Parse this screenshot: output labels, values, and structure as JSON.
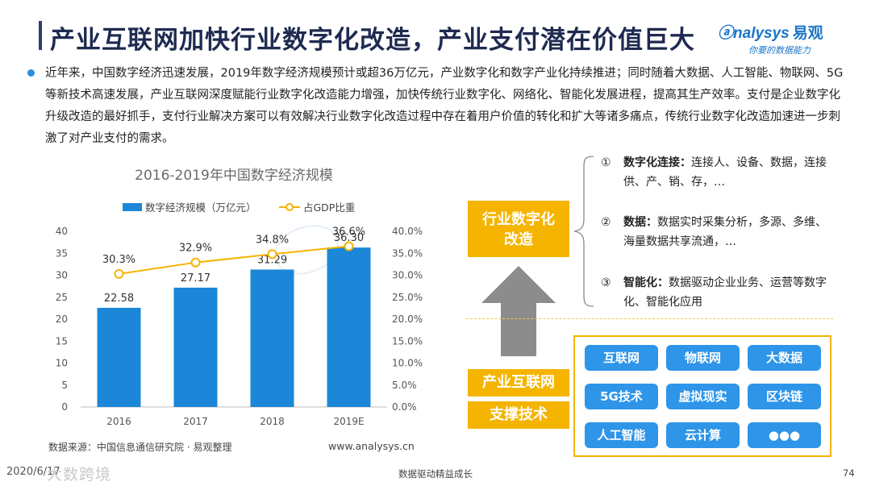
{
  "header": {
    "title": "产业互联网加快行业数字化改造，产业支付潜在价值巨大",
    "logo_text": "nalysys",
    "logo_cn": "易观",
    "logo_tagline": "你要的数据能力"
  },
  "intro": {
    "text": "近年来，中国数字经济迅速发展，2019年数字经济规模预计或超36万亿元，产业数字化和数字产业化持续推进；同时随着大数据、人工智能、物联网、5G等新技术高速发展，产业互联网深度赋能行业数字化改造能力增强，加快传统行业数字化、网络化、智能化发展进程，提高其生产效率。支付是企业数字化升级改造的最好抓手，支付行业解决方案可以有效解决行业数字化改造过程中存在着用户价值的转化和扩大等诸多痛点，传统行业数字化改造加速进一步刺激了对产业支付的需求。"
  },
  "chart_data": {
    "type": "bar+line",
    "title": "2016-2019年中国数字经济规模",
    "categories": [
      "2016",
      "2017",
      "2018",
      "2019E"
    ],
    "series": [
      {
        "name": "数字经济规模（万亿元）",
        "type": "bar",
        "values": [
          22.58,
          27.17,
          31.29,
          36.3
        ],
        "labels": [
          "22.58",
          "27.17",
          "31.29",
          "36.30"
        ],
        "color": "#1c87d8"
      },
      {
        "name": "占GDP比重",
        "type": "line",
        "values": [
          30.3,
          32.9,
          34.8,
          36.6
        ],
        "labels": [
          "30.3%",
          "32.9%",
          "34.8%",
          "36.6%"
        ],
        "color": "#f5b400"
      }
    ],
    "y_left": {
      "min": 0,
      "max": 40,
      "ticks": [
        "0",
        "5",
        "10",
        "15",
        "20",
        "25",
        "30",
        "35",
        "40"
      ]
    },
    "y_right": {
      "min": 0,
      "max": 40,
      "ticks": [
        "0.0%",
        "5.0%",
        "10.0%",
        "15.0%",
        "20.0%",
        "25.0%",
        "30.0%",
        "35.0%",
        "40.0%"
      ]
    },
    "legend_position": "top"
  },
  "source": {
    "text": "数据来源：中国信息通信研究院 · 易观整理",
    "website": "www.analysys.cn"
  },
  "diagram": {
    "transform_box": [
      "行业数字化",
      "改造"
    ],
    "support_box": [
      "产业互联网",
      "支撑技术"
    ],
    "points": [
      {
        "num": "①",
        "title": "数字化连接：",
        "text": "连接人、设备、数据，连接供、产、销、存，…"
      },
      {
        "num": "②",
        "title": "数据：",
        "text": "数据实时采集分析，多源、多维、海量数据共享流通，…"
      },
      {
        "num": "③",
        "title": "智能化：",
        "text": "数据驱动企业业务、运营等数字化、智能化应用"
      }
    ],
    "technologies": [
      "互联网",
      "物联网",
      "大数据",
      "5G技术",
      "虚拟现实",
      "区块链",
      "人工智能",
      "云计算",
      "●●●"
    ]
  },
  "footer": {
    "date": "2020/6/17",
    "brand": "大数跨境",
    "center": "数据驱动精益成长",
    "page": "74"
  },
  "colors": {
    "accent_blue": "#1c87d8",
    "accent_orange": "#f5b400",
    "title_navy": "#1e2a50"
  }
}
